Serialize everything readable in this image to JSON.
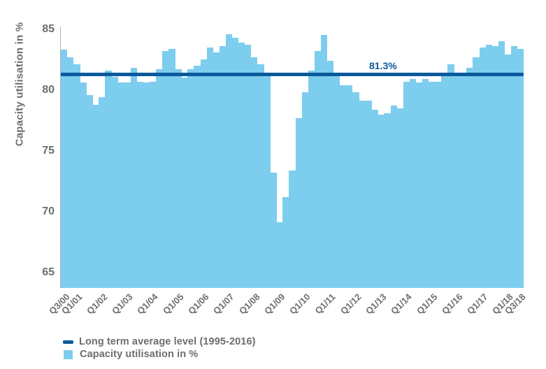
{
  "chart_data": {
    "type": "bar",
    "title": "",
    "xlabel": "",
    "ylabel": "Capacity utilisation in %",
    "ylim": [
      65,
      85
    ],
    "grid": false,
    "legend_position": "bottom-left",
    "yticks": [
      85,
      80,
      75,
      70,
      65
    ],
    "categories": [
      "Q3/00",
      "Q4/00",
      "Q1/01",
      "Q2/01",
      "Q3/01",
      "Q4/01",
      "Q1/02",
      "Q2/02",
      "Q3/02",
      "Q4/02",
      "Q1/03",
      "Q2/03",
      "Q3/03",
      "Q4/03",
      "Q1/04",
      "Q2/04",
      "Q3/04",
      "Q4/04",
      "Q1/05",
      "Q2/05",
      "Q3/05",
      "Q4/05",
      "Q1/06",
      "Q2/06",
      "Q3/06",
      "Q4/06",
      "Q1/07",
      "Q2/07",
      "Q3/07",
      "Q4/07",
      "Q1/08",
      "Q2/08",
      "Q3/08",
      "Q4/08",
      "Q1/09",
      "Q2/09",
      "Q3/09",
      "Q4/09",
      "Q1/10",
      "Q2/10",
      "Q3/10",
      "Q4/10",
      "Q1/11",
      "Q2/11",
      "Q3/11",
      "Q4/11",
      "Q1/12",
      "Q2/12",
      "Q3/12",
      "Q4/12",
      "Q1/13",
      "Q2/13",
      "Q3/13",
      "Q4/13",
      "Q1/14",
      "Q2/14",
      "Q3/14",
      "Q4/14",
      "Q1/15",
      "Q2/15",
      "Q3/15",
      "Q4/15",
      "Q1/16",
      "Q2/16",
      "Q3/16",
      "Q4/16",
      "Q1/17",
      "Q2/17",
      "Q3/17",
      "Q4/17",
      "Q1/18",
      "Q2/18",
      "Q3/18"
    ],
    "values": [
      83.3,
      82.7,
      82.1,
      80.6,
      79.6,
      78.8,
      79.4,
      81.6,
      81.1,
      80.6,
      80.6,
      81.8,
      80.7,
      80.6,
      80.7,
      81.7,
      83.2,
      83.4,
      81.7,
      81.0,
      81.7,
      82.0,
      82.5,
      83.5,
      83.1,
      83.6,
      84.6,
      84.3,
      83.9,
      83.7,
      82.7,
      82.1,
      81.3,
      73.2,
      69.1,
      71.2,
      73.4,
      77.7,
      79.8,
      81.6,
      83.2,
      84.5,
      82.4,
      81.2,
      80.4,
      80.4,
      79.8,
      79.1,
      79.1,
      78.4,
      78.0,
      78.1,
      78.7,
      78.5,
      80.7,
      80.9,
      80.6,
      80.9,
      80.7,
      80.7,
      81.4,
      82.1,
      81.4,
      81.3,
      81.8,
      82.7,
      83.5,
      83.7,
      83.6,
      84.0,
      82.9,
      83.6,
      83.4
    ],
    "xticks": [
      {
        "index": 0,
        "label": "Q3/00"
      },
      {
        "index": 2,
        "label": "Q1/01"
      },
      {
        "index": 6,
        "label": "Q1/02"
      },
      {
        "index": 10,
        "label": "Q1/03"
      },
      {
        "index": 14,
        "label": "Q1/04"
      },
      {
        "index": 18,
        "label": "Q1/05"
      },
      {
        "index": 22,
        "label": "Q1/06"
      },
      {
        "index": 26,
        "label": "Q1/07"
      },
      {
        "index": 30,
        "label": "Q1/08"
      },
      {
        "index": 34,
        "label": "Q1/09"
      },
      {
        "index": 38,
        "label": "Q1/10"
      },
      {
        "index": 42,
        "label": "Q1/11"
      },
      {
        "index": 46,
        "label": "Q1/12"
      },
      {
        "index": 50,
        "label": "Q1/13"
      },
      {
        "index": 54,
        "label": "Q1/14"
      },
      {
        "index": 58,
        "label": "Q1/15"
      },
      {
        "index": 62,
        "label": "Q1/16"
      },
      {
        "index": 66,
        "label": "Q1/17"
      },
      {
        "index": 70,
        "label": "Q1/18"
      },
      {
        "index": 72,
        "label": "Q3/18"
      }
    ],
    "average_line": {
      "value": 81.3,
      "annotation": "81.3%"
    },
    "legend": [
      {
        "swatch": "line",
        "label": "Long term average level (1995-2016)"
      },
      {
        "swatch": "square",
        "label": "Capacity utilisation in %"
      }
    ],
    "colors": {
      "bar": "#7dcdee",
      "average_line": "#0a5a9c",
      "text": "#6d6e71",
      "axis": "#aab3b9"
    }
  }
}
